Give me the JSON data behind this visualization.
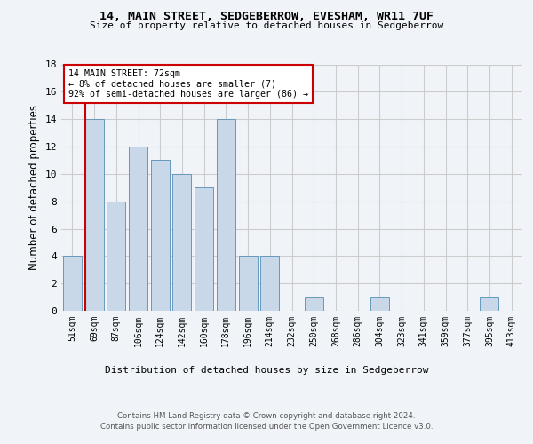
{
  "title1": "14, MAIN STREET, SEDGEBERROW, EVESHAM, WR11 7UF",
  "title2": "Size of property relative to detached houses in Sedgeberrow",
  "xlabel": "Distribution of detached houses by size in Sedgeberrow",
  "ylabel": "Number of detached properties",
  "categories": [
    "51sqm",
    "69sqm",
    "87sqm",
    "106sqm",
    "124sqm",
    "142sqm",
    "160sqm",
    "178sqm",
    "196sqm",
    "214sqm",
    "232sqm",
    "250sqm",
    "268sqm",
    "286sqm",
    "304sqm",
    "323sqm",
    "341sqm",
    "359sqm",
    "377sqm",
    "395sqm",
    "413sqm"
  ],
  "values": [
    4,
    14,
    8,
    12,
    11,
    10,
    9,
    14,
    4,
    4,
    0,
    1,
    0,
    0,
    1,
    0,
    0,
    0,
    0,
    1,
    0
  ],
  "bar_color": "#c8d8e8",
  "bar_edgecolor": "#6699bb",
  "vline_color": "#cc0000",
  "annotation_text": "14 MAIN STREET: 72sqm\n← 8% of detached houses are smaller (7)\n92% of semi-detached houses are larger (86) →",
  "annotation_box_color": "#ffffff",
  "annotation_box_edgecolor": "#cc0000",
  "ylim": [
    0,
    18
  ],
  "yticks": [
    0,
    2,
    4,
    6,
    8,
    10,
    12,
    14,
    16,
    18
  ],
  "footer1": "Contains HM Land Registry data © Crown copyright and database right 2024.",
  "footer2": "Contains public sector information licensed under the Open Government Licence v3.0.",
  "bg_color": "#f0f4f8",
  "plot_bg_color": "#f0f4f8",
  "grid_color": "#cccccc"
}
